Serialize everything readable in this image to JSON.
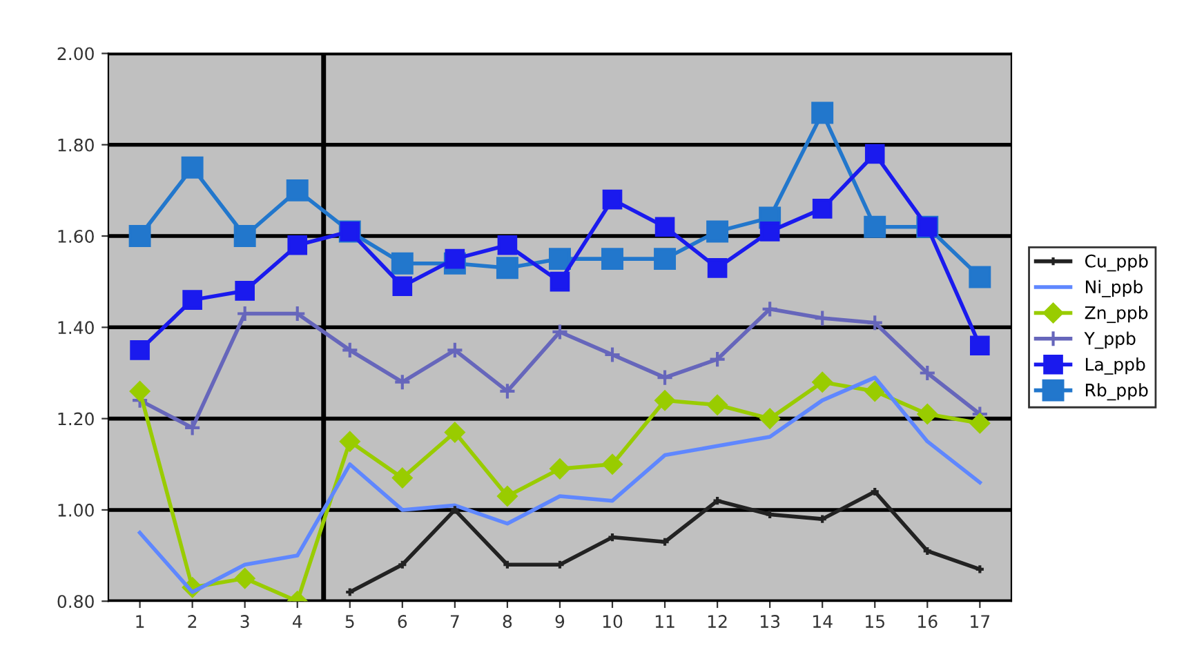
{
  "chart_data": {
    "type": "line",
    "x": [
      1,
      2,
      3,
      4,
      5,
      6,
      7,
      8,
      9,
      10,
      11,
      12,
      13,
      14,
      15,
      16,
      17
    ],
    "xlim": [
      0.4,
      17.6
    ],
    "xticks": [
      1,
      2,
      3,
      4,
      5,
      6,
      7,
      8,
      9,
      10,
      11,
      12,
      13,
      14,
      15,
      16,
      17
    ],
    "ylim": [
      0.8,
      2.0
    ],
    "yticks": [
      {
        "value": 0.8,
        "label": "0.80"
      },
      {
        "value": 1.0,
        "label": "1.00"
      },
      {
        "value": 1.2,
        "label": "1.20"
      },
      {
        "value": 1.4,
        "label": "1.40"
      },
      {
        "value": 1.6,
        "label": "1.60"
      },
      {
        "value": 1.8,
        "label": "1.80"
      },
      {
        "value": 2.0,
        "label": "2.00"
      }
    ],
    "grid": "y",
    "legend": "right",
    "ref_lines": [
      {
        "axis": "x",
        "value": 4.5,
        "color": "#000000"
      }
    ],
    "series": [
      {
        "name": "Cu_ppb",
        "color": "#222222",
        "marker": "cross",
        "values": [
          null,
          null,
          null,
          null,
          0.82,
          0.88,
          1.0,
          0.88,
          0.88,
          0.94,
          0.93,
          1.02,
          0.99,
          0.98,
          1.04,
          0.91,
          0.87
        ]
      },
      {
        "name": "Ni_ppb",
        "color": "#5f87ff",
        "marker": "none",
        "values": [
          0.95,
          0.82,
          0.88,
          0.9,
          1.1,
          1.0,
          1.01,
          0.97,
          1.03,
          1.02,
          1.12,
          1.14,
          1.16,
          1.24,
          1.29,
          1.15,
          1.06
        ]
      },
      {
        "name": "Zn_ppb",
        "color": "#99cc00",
        "marker": "diamond",
        "values": [
          1.26,
          0.83,
          0.85,
          0.8,
          1.15,
          1.07,
          1.17,
          1.03,
          1.09,
          1.1,
          1.24,
          1.23,
          1.2,
          1.28,
          1.26,
          1.21,
          1.19
        ]
      },
      {
        "name": "Y_ppb",
        "color": "#6666bb",
        "marker": "cross",
        "values": [
          1.24,
          1.18,
          1.43,
          1.43,
          1.35,
          1.28,
          1.35,
          1.26,
          1.39,
          1.34,
          1.29,
          1.33,
          1.44,
          1.42,
          1.41,
          1.3,
          1.21
        ]
      },
      {
        "name": "La_ppb",
        "color": "#1a1aee",
        "marker": "square",
        "values": [
          1.35,
          1.46,
          1.48,
          1.58,
          1.61,
          1.49,
          1.55,
          1.58,
          1.5,
          1.68,
          1.62,
          1.53,
          1.61,
          1.66,
          1.78,
          1.62,
          1.36
        ]
      },
      {
        "name": "Rb_ppb",
        "color": "#2277cc",
        "marker": "square",
        "values": [
          1.6,
          1.75,
          1.6,
          1.7,
          1.61,
          1.54,
          1.54,
          1.53,
          1.55,
          1.55,
          1.55,
          1.61,
          1.64,
          1.87,
          1.62,
          1.62,
          1.51
        ]
      }
    ]
  }
}
